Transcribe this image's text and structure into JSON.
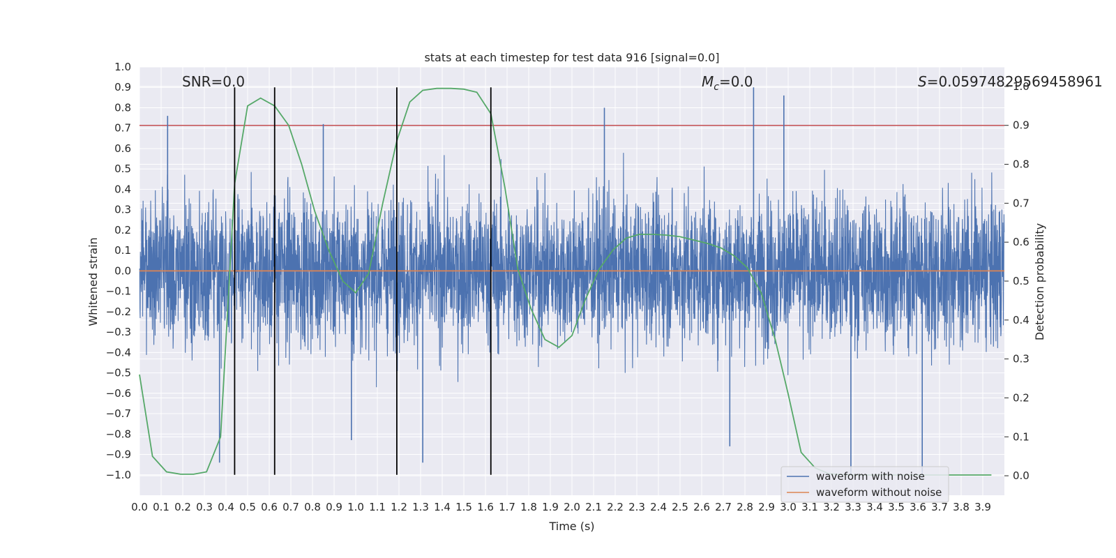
{
  "chart_data": {
    "type": "line",
    "title": "stats at each timestep for test data 916 [signal=0.0]",
    "xlabel": "Time (s)",
    "ylabel": "Whitened strain",
    "ylabel_right": "Detection probability",
    "xlim": [
      0.0,
      4.0
    ],
    "ylim": [
      -1.1,
      1.0
    ],
    "ylim_right": [
      -0.05,
      1.05
    ],
    "x_ticks": [
      0.0,
      0.1,
      0.2,
      0.3,
      0.4,
      0.5,
      0.6,
      0.7,
      0.8,
      0.9,
      1.0,
      1.1,
      1.2,
      1.3,
      1.4,
      1.5,
      1.6,
      1.7,
      1.8,
      1.9,
      2.0,
      2.1,
      2.2,
      2.3,
      2.4,
      2.5,
      2.6,
      2.7,
      2.8,
      2.9,
      3.0,
      3.1,
      3.2,
      3.3,
      3.4,
      3.5,
      3.6,
      3.7,
      3.8,
      3.9
    ],
    "x_tick_labels": [
      "0.0",
      "0.1",
      "0.2",
      "0.3",
      "0.4",
      "0.5",
      "0.6",
      "0.7",
      "0.8",
      "0.9",
      "1.0",
      "1.1",
      "1.2",
      "1.3",
      "1.4",
      "1.5",
      "1.6",
      "1.7",
      "1.8",
      "1.9",
      "2.0",
      "2.1",
      "2.2",
      "2.3",
      "2.4",
      "2.5",
      "2.6",
      "2.7",
      "2.8",
      "2.9",
      "3.0",
      "3.1",
      "3.2",
      "3.3",
      "3.4",
      "3.5",
      "3.6",
      "3.7",
      "3.8",
      "3.9"
    ],
    "y_ticks": [
      -1.0,
      -0.9,
      -0.8,
      -0.7,
      -0.6,
      -0.5,
      -0.4,
      -0.3,
      -0.2,
      -0.1,
      0.0,
      0.1,
      0.2,
      0.3,
      0.4,
      0.5,
      0.6,
      0.7,
      0.8,
      0.9,
      1.0
    ],
    "y_tick_labels": [
      "−1.0",
      "−0.9",
      "−0.8",
      "−0.7",
      "−0.6",
      "−0.5",
      "−0.4",
      "−0.3",
      "−0.2",
      "−0.1",
      "0.0",
      "0.1",
      "0.2",
      "0.3",
      "0.4",
      "0.5",
      "0.6",
      "0.7",
      "0.8",
      "0.9",
      "1.0"
    ],
    "y_right_ticks": [
      0.0,
      0.1,
      0.2,
      0.3,
      0.4,
      0.5,
      0.6,
      0.7,
      0.8,
      0.9,
      1.0
    ],
    "y_right_tick_labels": [
      "0.0",
      "0.1",
      "0.2",
      "0.3",
      "0.4",
      "0.5",
      "0.6",
      "0.7",
      "0.8",
      "0.9",
      "1.0"
    ],
    "annotations": {
      "snr": "SNR=0.0",
      "mc_symbol": "M",
      "mc_sub": "c",
      "mc_value": "=0.0",
      "s_symbol": "S",
      "s_value": "=0.05974829569458961"
    },
    "series": [
      {
        "name": "waveform with noise",
        "axis": "left",
        "color": "#4c72b0",
        "generated": "noise",
        "amplitude_rms": 0.2,
        "peaks": [
          {
            "x": 0.13,
            "y": 0.76
          },
          {
            "x": 0.37,
            "y": -0.94
          },
          {
            "x": 0.85,
            "y": 0.72
          },
          {
            "x": 0.98,
            "y": -0.83
          },
          {
            "x": 1.31,
            "y": -0.94
          },
          {
            "x": 2.15,
            "y": 0.8
          },
          {
            "x": 2.84,
            "y": 0.9
          },
          {
            "x": 2.98,
            "y": 0.86
          },
          {
            "x": 3.29,
            "y": -1.0
          },
          {
            "x": 3.62,
            "y": -1.02
          },
          {
            "x": 2.73,
            "y": -0.86
          }
        ]
      },
      {
        "name": "waveform without noise",
        "axis": "left",
        "color": "#dd8452",
        "x": [
          0.0,
          4.0
        ],
        "y": [
          0.0,
          0.0
        ]
      },
      {
        "name": "detection probability",
        "axis": "right",
        "color": "#55a868",
        "x": [
          0.0,
          0.06,
          0.125,
          0.19,
          0.25,
          0.31,
          0.375,
          0.44,
          0.5,
          0.56,
          0.625,
          0.69,
          0.75,
          0.81,
          0.875,
          0.94,
          1.0,
          1.06,
          1.125,
          1.19,
          1.25,
          1.31,
          1.375,
          1.44,
          1.5,
          1.56,
          1.625,
          1.69,
          1.75,
          1.81,
          1.875,
          1.94,
          2.0,
          2.06,
          2.125,
          2.19,
          2.25,
          2.31,
          2.375,
          2.44,
          2.5,
          2.56,
          2.625,
          2.69,
          2.75,
          2.81,
          2.875,
          2.94,
          3.0,
          3.06,
          3.125,
          3.19,
          3.25,
          3.31,
          3.375,
          3.44,
          3.5,
          3.56,
          3.625,
          3.69,
          3.75,
          3.81,
          3.875,
          3.94
        ],
        "y": [
          0.26,
          0.05,
          0.01,
          0.004,
          0.004,
          0.01,
          0.1,
          0.75,
          0.95,
          0.97,
          0.95,
          0.9,
          0.8,
          0.68,
          0.58,
          0.5,
          0.47,
          0.52,
          0.7,
          0.86,
          0.96,
          0.99,
          0.995,
          0.995,
          0.993,
          0.985,
          0.93,
          0.74,
          0.53,
          0.43,
          0.35,
          0.33,
          0.36,
          0.45,
          0.53,
          0.58,
          0.61,
          0.62,
          0.62,
          0.618,
          0.614,
          0.606,
          0.597,
          0.585,
          0.565,
          0.535,
          0.47,
          0.35,
          0.21,
          0.06,
          0.02,
          0.005,
          0.003,
          0.002,
          0.002,
          0.002,
          0.002,
          0.002,
          0.002,
          0.002,
          0.002,
          0.002,
          0.002,
          0.002
        ]
      }
    ],
    "hlines": [
      {
        "axis": "right",
        "y": 0.9,
        "color": "#c44e52"
      }
    ],
    "vlines": [
      {
        "x": 0.44,
        "y_from": -1.0,
        "y_to": 0.9,
        "color": "#000000"
      },
      {
        "x": 0.625,
        "y_from": -1.0,
        "y_to": 0.9,
        "color": "#000000"
      },
      {
        "x": 1.19,
        "y_from": -1.0,
        "y_to": 0.9,
        "color": "#000000"
      },
      {
        "x": 1.625,
        "y_from": -1.0,
        "y_to": 0.9,
        "color": "#000000"
      }
    ],
    "legend": {
      "position": "lower-right",
      "entries": [
        {
          "label": "waveform with noise",
          "color": "#4c72b0"
        },
        {
          "label": "waveform without noise",
          "color": "#dd8452"
        }
      ]
    },
    "grid": true,
    "background": "#eaeaf2"
  }
}
